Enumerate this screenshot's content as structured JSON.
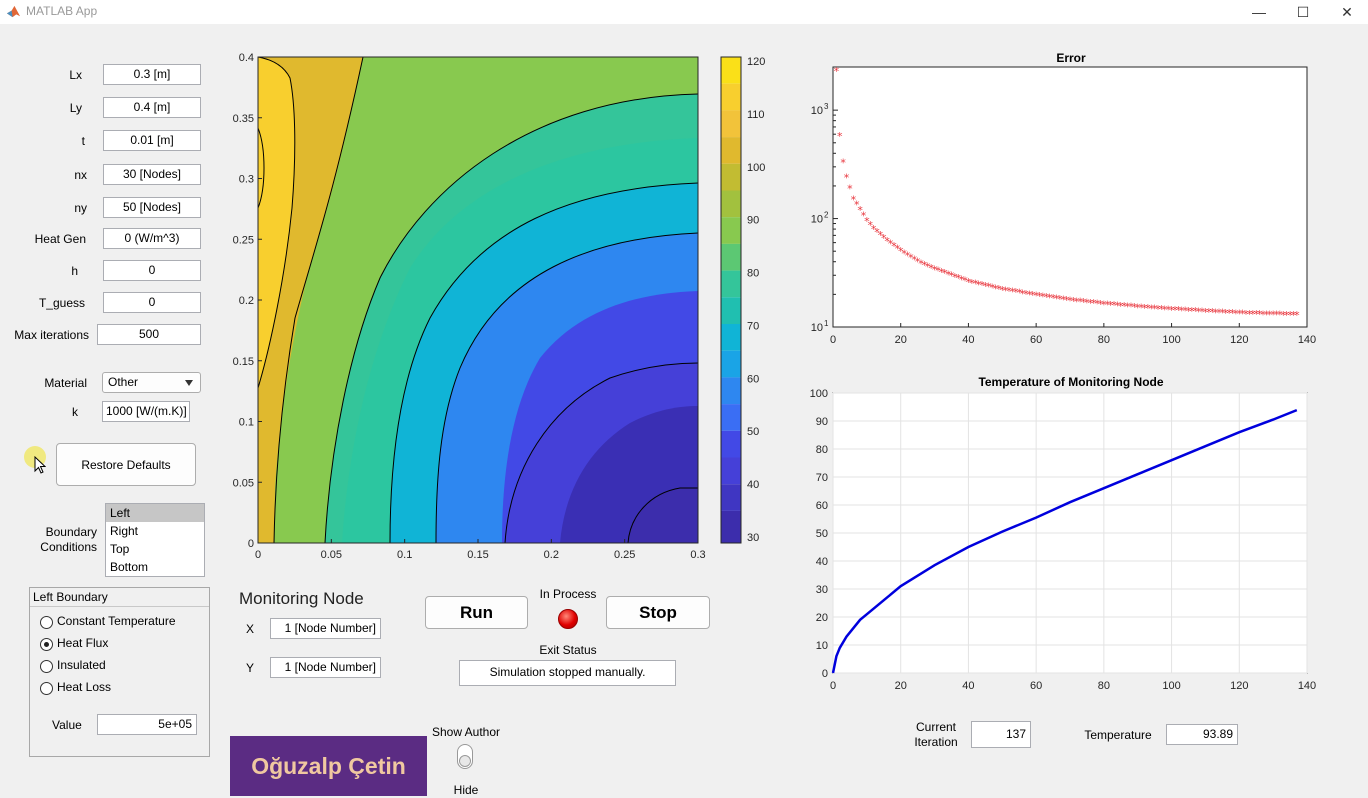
{
  "window": {
    "title": "MATLAB App",
    "minimize": "—",
    "maximize": "☐",
    "close": "✕"
  },
  "params": [
    {
      "label": "Lx",
      "value": "0.3 [m]"
    },
    {
      "label": "Ly",
      "value": "0.4 [m]"
    },
    {
      "label": "t",
      "value": "0.01 [m]"
    },
    {
      "label": "nx",
      "value": "30 [Nodes]"
    },
    {
      "label": "ny",
      "value": "50 [Nodes]"
    },
    {
      "label": "Heat Gen",
      "value": "0 (W/m^3)"
    },
    {
      "label": "h",
      "value": "0"
    },
    {
      "label": "T_guess",
      "value": "0"
    },
    {
      "label": "Max iterations",
      "value": "500"
    }
  ],
  "material": {
    "label": "Material",
    "selected": "Other",
    "k_label": "k",
    "k_value": "1000 [W/(m.K)]"
  },
  "restore_defaults": "Restore Defaults",
  "boundary": {
    "label_line1": "Boundary",
    "label_line2": "Conditions",
    "items": [
      "Left",
      "Right",
      "Top",
      "Bottom"
    ],
    "selected": "Left"
  },
  "left_boundary": {
    "title": "Left Boundary",
    "options": [
      "Constant Temperature",
      "Heat Flux",
      "Insulated",
      "Heat Loss"
    ],
    "selected": "Heat Flux",
    "value_label": "Value",
    "value": "5e+05"
  },
  "contour": {
    "x_ticks": [
      "0",
      "0.05",
      "0.1",
      "0.15",
      "0.2",
      "0.25",
      "0.3"
    ],
    "y_ticks": [
      "0",
      "0.05",
      "0.1",
      "0.15",
      "0.2",
      "0.25",
      "0.3",
      "0.35",
      "0.4"
    ],
    "colorbar_ticks": [
      "30",
      "40",
      "50",
      "60",
      "70",
      "80",
      "90",
      "100",
      "110",
      "120"
    ]
  },
  "monitoring": {
    "title": "Monitoring Node",
    "x_label": "X",
    "x_value": "1 [Node Number]",
    "y_label": "Y",
    "y_value": "1 [Node Number]"
  },
  "controls": {
    "run": "Run",
    "stop": "Stop",
    "status_label": "In Process",
    "status_color": "#e00000",
    "exit_label": "Exit Status",
    "exit_value": "Simulation stopped manually."
  },
  "author": {
    "name": "Oğuzalp Çetin",
    "switch_label_top": "Show Author",
    "switch_label_bottom": "Hide",
    "bg_color": "#5b2c83"
  },
  "readouts": {
    "iteration_label_1": "Current",
    "iteration_label_2": "Iteration",
    "iteration_value": "137",
    "temperature_label": "Temperature",
    "temperature_value": "93.89"
  },
  "chart_data": [
    {
      "type": "scatter",
      "title": "Error",
      "xlabel": "",
      "ylabel": "",
      "xlim": [
        0,
        140
      ],
      "ylim": [
        10,
        2500
      ],
      "y_scale": "log",
      "x_ticks": [
        "0",
        "20",
        "40",
        "60",
        "80",
        "100",
        "120",
        "140"
      ],
      "y_ticks": [
        "10^1",
        "10^2",
        "10^3"
      ],
      "marker": "*",
      "color": "#e8343c",
      "grid": false,
      "x": [
        1,
        2,
        3,
        4,
        5,
        6,
        8,
        10,
        12,
        15,
        20,
        25,
        30,
        40,
        50,
        60,
        70,
        80,
        90,
        100,
        110,
        120,
        130,
        137
      ],
      "y": [
        2300,
        580,
        330,
        240,
        190,
        150,
        120,
        95,
        80,
        66,
        50,
        40,
        34,
        26,
        22,
        19.5,
        17.5,
        16.2,
        15.2,
        14.4,
        13.8,
        13.3,
        13.0,
        12.9
      ]
    },
    {
      "type": "line",
      "title": "Temperature of Monitoring Node",
      "xlabel": "",
      "ylabel": "",
      "xlim": [
        0,
        140
      ],
      "ylim": [
        0,
        100
      ],
      "x_ticks": [
        "0",
        "20",
        "40",
        "60",
        "80",
        "100",
        "120",
        "140"
      ],
      "y_ticks": [
        "0",
        "10",
        "20",
        "30",
        "40",
        "50",
        "60",
        "70",
        "80",
        "90",
        "100"
      ],
      "color": "#0000dd",
      "grid": true,
      "x": [
        0,
        1,
        2,
        4,
        6,
        8,
        10,
        15,
        20,
        30,
        40,
        50,
        60,
        70,
        80,
        90,
        100,
        110,
        120,
        130,
        137
      ],
      "y": [
        0,
        6,
        9,
        13,
        16,
        19,
        21,
        26,
        31,
        38.5,
        45,
        50.5,
        55.5,
        61,
        66,
        71,
        76,
        81,
        86,
        90.5,
        93.89
      ]
    }
  ]
}
